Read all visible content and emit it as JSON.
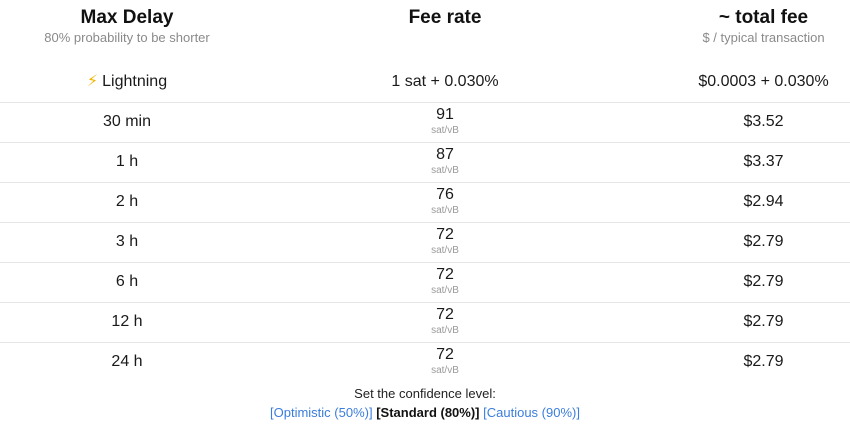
{
  "header": {
    "col1_title": "Max Delay",
    "col1_sub": "80% probability to be shorter",
    "col2_title": "Fee rate",
    "col3_title": "~ total fee",
    "col3_sub": "$ / typical transaction"
  },
  "lightning": {
    "icon": "⚡",
    "label": "Lightning",
    "fee": "1 sat + 0.030%",
    "total": "$0.0003 + 0.030%"
  },
  "rows": [
    {
      "delay": "30 min",
      "rate": "91",
      "unit": "sat/vB",
      "total": "$3.52"
    },
    {
      "delay": "1 h",
      "rate": "87",
      "unit": "sat/vB",
      "total": "$3.37"
    },
    {
      "delay": "2 h",
      "rate": "76",
      "unit": "sat/vB",
      "total": "$2.94"
    },
    {
      "delay": "3 h",
      "rate": "72",
      "unit": "sat/vB",
      "total": "$2.79"
    },
    {
      "delay": "6 h",
      "rate": "72",
      "unit": "sat/vB",
      "total": "$2.79"
    },
    {
      "delay": "12 h",
      "rate": "72",
      "unit": "sat/vB",
      "total": "$2.79"
    },
    {
      "delay": "24 h",
      "rate": "72",
      "unit": "sat/vB",
      "total": "$2.79"
    }
  ],
  "footer": {
    "label": "Set the confidence level:",
    "options": [
      {
        "text": "[Optimistic (50%)]",
        "selected": false
      },
      {
        "text": "[Standard (80%)]",
        "selected": true
      },
      {
        "text": "[Cautious (90%)]",
        "selected": false
      }
    ]
  },
  "colors": {
    "link": "#3b7ddd",
    "bolt": "#f2b705"
  }
}
